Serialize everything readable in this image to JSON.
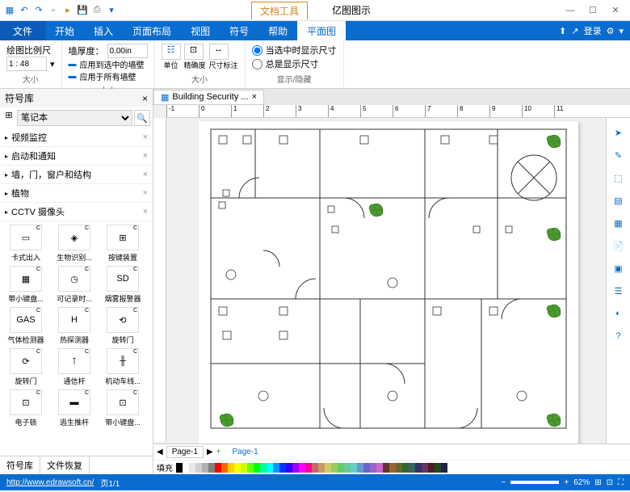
{
  "titlebar": {
    "tab1": "文档工具",
    "tab2": "亿图图示"
  },
  "menu": {
    "file": "文件",
    "start": "开始",
    "insert": "插入",
    "layout": "页面布局",
    "view": "视图",
    "symbol": "符号",
    "help": "帮助",
    "plan": "平面图",
    "login": "登录"
  },
  "ribbon": {
    "scale_label": "绘图比例尺",
    "scale_value": "1 : 48",
    "size_label": "大小",
    "wall_thick": "墙厚度：",
    "wall_value": "0.00in",
    "wall_apply_sel": "应用到选中的墙壁",
    "wall_apply_all": "应用于所有墙壁",
    "unit": "单位",
    "precision": "精确度",
    "dim": "尺寸标注",
    "show_sel": "当选中时显示尺寸",
    "show_always": "总是显示尺寸",
    "show_hide": "显示/隐藏"
  },
  "sidebar": {
    "title": "符号库",
    "dropdown": "笔记本",
    "categories": [
      "视频监控",
      "启动和通知",
      "墙，门，窗户和结构",
      "植物",
      "CCTV 摄像头"
    ],
    "shapes": [
      [
        "卡式出入",
        "生物识别...",
        "按键装置"
      ],
      [
        "带小键盘...",
        "可记录时...",
        "烟雾报警器"
      ],
      [
        "气体检测器",
        "热探测器",
        "旋转门"
      ],
      [
        "旋转门",
        "通信杆",
        "机动车线..."
      ],
      [
        "电子锁",
        "逃生推杆",
        "带小键盘..."
      ]
    ],
    "tab1": "符号库",
    "tab2": "文件恢复"
  },
  "doc": {
    "tab_name": "Building Security ..."
  },
  "ruler_marks": [
    "-1",
    "0",
    "1",
    "2",
    "3",
    "4",
    "5",
    "6",
    "7",
    "8",
    "9",
    "10",
    "11"
  ],
  "page_tabs": {
    "page": "Page-1"
  },
  "colorbar": {
    "fill_label": "填充",
    "colors": [
      "#000000",
      "#ffffff",
      "#e8e8e8",
      "#d0d0d0",
      "#b0b0b0",
      "#808080",
      "#ff0000",
      "#ff6600",
      "#ffcc00",
      "#ffff00",
      "#ccff00",
      "#66ff00",
      "#00ff00",
      "#00ff99",
      "#00ffff",
      "#0099ff",
      "#0033ff",
      "#3300ff",
      "#9900ff",
      "#ff00ff",
      "#ff0099",
      "#cc6666",
      "#cc9966",
      "#cccc66",
      "#99cc66",
      "#66cc66",
      "#66cc99",
      "#66cccc",
      "#6699cc",
      "#6666cc",
      "#9966cc",
      "#cc66cc",
      "#663333",
      "#996633",
      "#666633",
      "#336633",
      "#336666",
      "#333366",
      "#663366",
      "#4a2020",
      "#204a20",
      "#20204a"
    ]
  },
  "status": {
    "url": "http://www.edrawsoft.cn/",
    "page_info": "页1/1",
    "zoom": "62%"
  }
}
